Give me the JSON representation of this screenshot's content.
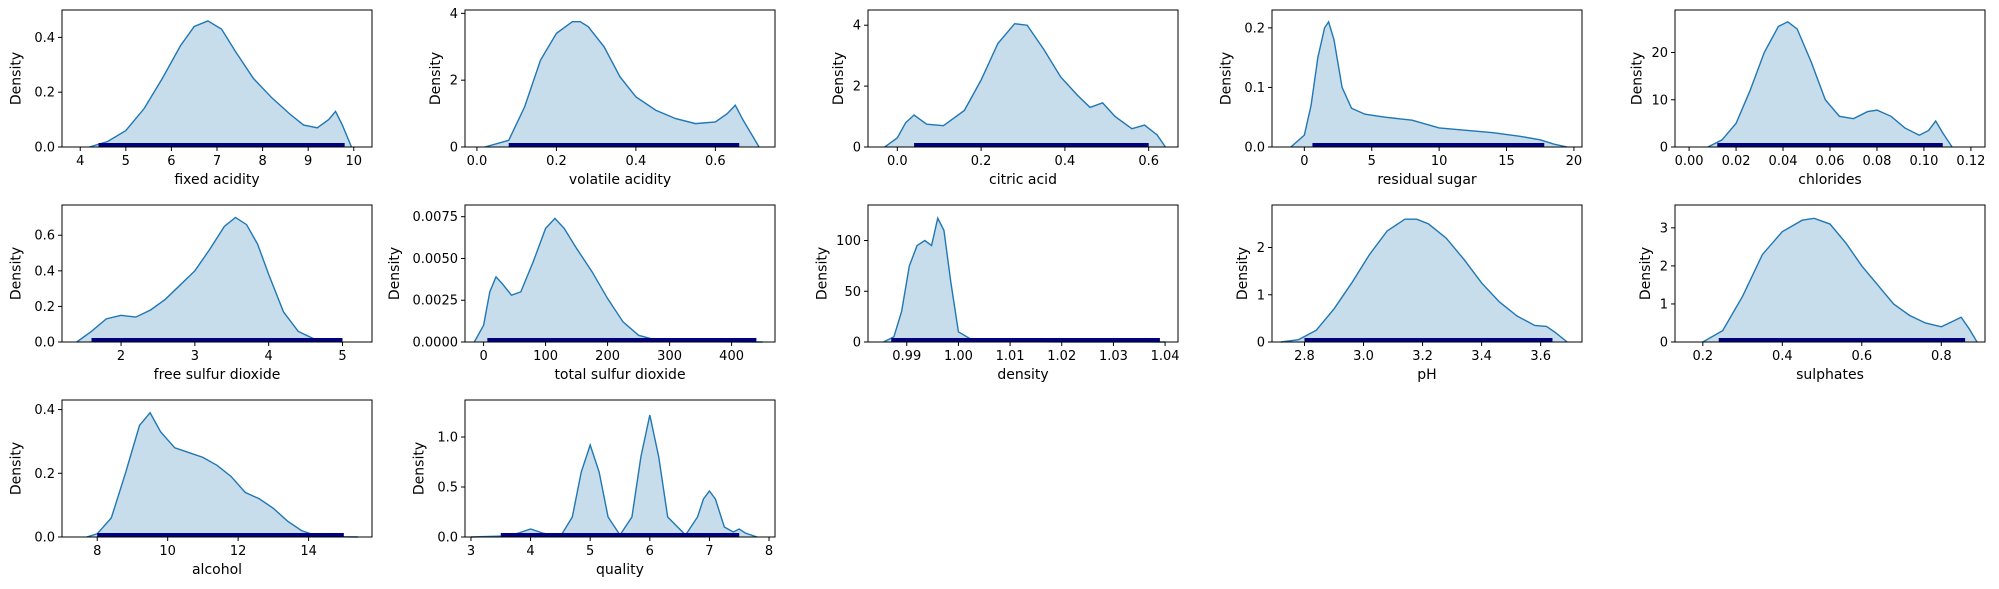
{
  "style": {
    "fill_color": "#1f77b4",
    "line_color": "#1f77b4",
    "rug_color": "#000080",
    "frame_color": "#000000"
  },
  "chart_data": [
    {
      "type": "area",
      "xlabel": "fixed acidity",
      "ylabel": "Density",
      "xlim": [
        3.6,
        10.4
      ],
      "ylim": [
        0,
        0.5
      ],
      "xticks": [
        "4",
        "5",
        "6",
        "7",
        "8",
        "9",
        "10"
      ],
      "yticks": [
        "0.0",
        "0.2",
        "0.4"
      ],
      "x": [
        4.2,
        4.6,
        5.0,
        5.4,
        5.8,
        6.2,
        6.5,
        6.8,
        7.1,
        7.4,
        7.8,
        8.2,
        8.6,
        8.9,
        9.2,
        9.45,
        9.6,
        9.75,
        9.95
      ],
      "y": [
        0.0,
        0.02,
        0.06,
        0.14,
        0.25,
        0.37,
        0.44,
        0.46,
        0.43,
        0.35,
        0.25,
        0.18,
        0.12,
        0.08,
        0.07,
        0.1,
        0.13,
        0.08,
        0.0
      ],
      "rug": [
        4.4,
        9.8
      ]
    },
    {
      "type": "area",
      "xlabel": "volatile acidity",
      "ylabel": "Density",
      "xlim": [
        -0.03,
        0.75
      ],
      "ylim": [
        0,
        4.1
      ],
      "xticks": [
        "0.0",
        "0.2",
        "0.4",
        "0.6"
      ],
      "yticks": [
        "0",
        "2",
        "4"
      ],
      "x": [
        0.02,
        0.08,
        0.12,
        0.16,
        0.2,
        0.24,
        0.26,
        0.28,
        0.32,
        0.36,
        0.4,
        0.45,
        0.5,
        0.55,
        0.6,
        0.63,
        0.65,
        0.67,
        0.71
      ],
      "y": [
        0.0,
        0.2,
        1.2,
        2.6,
        3.4,
        3.75,
        3.75,
        3.6,
        3.0,
        2.1,
        1.5,
        1.1,
        0.85,
        0.7,
        0.75,
        1.0,
        1.25,
        0.8,
        0.0
      ],
      "rug": [
        0.08,
        0.66
      ]
    },
    {
      "type": "area",
      "xlabel": "citric acid",
      "ylabel": "Density",
      "xlim": [
        -0.07,
        0.67
      ],
      "ylim": [
        0,
        4.5
      ],
      "xticks": [
        "0.0",
        "0.2",
        "0.4",
        "0.6"
      ],
      "yticks": [
        "0",
        "2",
        "4"
      ],
      "x": [
        -0.03,
        0.0,
        0.02,
        0.04,
        0.07,
        0.11,
        0.16,
        0.2,
        0.24,
        0.28,
        0.31,
        0.35,
        0.39,
        0.43,
        0.46,
        0.49,
        0.52,
        0.56,
        0.59,
        0.62,
        0.64
      ],
      "y": [
        0.0,
        0.3,
        0.8,
        1.05,
        0.75,
        0.7,
        1.2,
        2.2,
        3.4,
        4.05,
        4.0,
        3.2,
        2.3,
        1.7,
        1.3,
        1.45,
        1.0,
        0.6,
        0.72,
        0.4,
        0.0
      ],
      "rug": [
        0.04,
        0.6
      ]
    },
    {
      "type": "area",
      "xlabel": "residual sugar",
      "ylabel": "Density",
      "xlim": [
        -2.4,
        20.6
      ],
      "ylim": [
        0,
        0.23
      ],
      "xticks": [
        "0",
        "5",
        "10",
        "15",
        "20"
      ],
      "yticks": [
        "0.0",
        "0.1",
        "0.2"
      ],
      "x": [
        -1.0,
        0.0,
        0.5,
        1.0,
        1.5,
        1.8,
        2.2,
        2.8,
        3.5,
        4.5,
        6.0,
        8.0,
        10.0,
        12.0,
        14.0,
        16.0,
        17.5,
        18.5,
        19.5
      ],
      "y": [
        0.0,
        0.02,
        0.07,
        0.15,
        0.2,
        0.21,
        0.18,
        0.1,
        0.065,
        0.055,
        0.05,
        0.045,
        0.032,
        0.028,
        0.024,
        0.018,
        0.012,
        0.005,
        0.0
      ],
      "rug": [
        0.6,
        17.8
      ]
    },
    {
      "type": "area",
      "xlabel": "chlorides",
      "ylabel": "Density",
      "xlim": [
        -0.006,
        0.126
      ],
      "ylim": [
        0,
        29
      ],
      "xticks": [
        "0.00",
        "0.02",
        "0.04",
        "0.06",
        "0.08",
        "0.10",
        "0.12"
      ],
      "yticks": [
        "0",
        "10",
        "20"
      ],
      "x": [
        0.008,
        0.014,
        0.02,
        0.026,
        0.032,
        0.038,
        0.042,
        0.046,
        0.052,
        0.058,
        0.064,
        0.07,
        0.076,
        0.08,
        0.086,
        0.092,
        0.098,
        0.102,
        0.105,
        0.108,
        0.112
      ],
      "y": [
        0.0,
        1.5,
        5.0,
        12.0,
        20.0,
        25.5,
        26.5,
        25.0,
        18.0,
        10.0,
        6.5,
        6.0,
        7.5,
        7.8,
        6.5,
        4.0,
        2.5,
        3.5,
        5.5,
        3.0,
        0.0
      ],
      "rug": [
        0.012,
        0.108
      ]
    },
    {
      "type": "area",
      "xlabel": "free sulfur dioxide",
      "ylabel": "Density",
      "xlim": [
        1.2,
        5.4
      ],
      "ylim": [
        0,
        0.77
      ],
      "xticks": [
        "2",
        "3",
        "4",
        "5"
      ],
      "yticks": [
        "0.0",
        "0.2",
        "0.4",
        "0.6"
      ],
      "x": [
        1.4,
        1.6,
        1.8,
        2.0,
        2.2,
        2.4,
        2.6,
        2.8,
        3.0,
        3.2,
        3.4,
        3.55,
        3.7,
        3.85,
        4.0,
        4.2,
        4.4,
        4.6,
        4.8,
        5.0
      ],
      "y": [
        0.0,
        0.06,
        0.13,
        0.15,
        0.14,
        0.18,
        0.24,
        0.32,
        0.4,
        0.52,
        0.65,
        0.7,
        0.66,
        0.55,
        0.38,
        0.17,
        0.06,
        0.02,
        0.005,
        0.0
      ],
      "rug": [
        1.6,
        5.0
      ]
    },
    {
      "type": "area",
      "xlabel": "total sulfur dioxide",
      "ylabel": "Density",
      "xlim": [
        -30,
        470
      ],
      "ylim": [
        0,
        0.0082
      ],
      "xticks": [
        "0",
        "100",
        "200",
        "300",
        "400"
      ],
      "yticks": [
        "0.0000",
        "0.0025",
        "0.0050",
        "0.0075"
      ],
      "x": [
        -15,
        0,
        10,
        20,
        30,
        45,
        60,
        80,
        100,
        115,
        130,
        150,
        175,
        200,
        225,
        250,
        280,
        320,
        380,
        450
      ],
      "y": [
        0.0,
        0.001,
        0.003,
        0.0039,
        0.0035,
        0.0028,
        0.003,
        0.0048,
        0.0068,
        0.0074,
        0.0068,
        0.0056,
        0.0042,
        0.0026,
        0.0012,
        0.0004,
        0.0001,
        3e-05,
        1e-05,
        0.0
      ],
      "rug": [
        6,
        440
      ]
    },
    {
      "type": "area",
      "xlabel": "density",
      "ylabel": "Density",
      "xlim": [
        0.9825,
        1.0425
      ],
      "ylim": [
        0,
        135
      ],
      "xticks": [
        "0.99",
        "1.00",
        "1.01",
        "1.02",
        "1.03",
        "1.04"
      ],
      "yticks": [
        "0",
        "50",
        "100"
      ],
      "x": [
        0.9855,
        0.9875,
        0.989,
        0.9905,
        0.992,
        0.9935,
        0.9948,
        0.996,
        0.9972,
        0.9985,
        1.0,
        1.003,
        1.01,
        1.02,
        1.03,
        1.04
      ],
      "y": [
        0.0,
        5,
        30,
        75,
        95,
        100,
        95,
        122,
        110,
        60,
        10,
        1,
        0.3,
        0.1,
        0.05,
        0.0
      ],
      "rug": [
        0.987,
        1.039
      ]
    },
    {
      "type": "area",
      "xlabel": "pH",
      "ylabel": "Density",
      "xlim": [
        2.69,
        3.74
      ],
      "ylim": [
        0,
        2.9
      ],
      "xticks": [
        "2.8",
        "3.0",
        "3.2",
        "3.4",
        "3.6"
      ],
      "yticks": [
        "0",
        "1",
        "2"
      ],
      "x": [
        2.72,
        2.78,
        2.84,
        2.9,
        2.96,
        3.02,
        3.08,
        3.14,
        3.18,
        3.22,
        3.28,
        3.34,
        3.4,
        3.46,
        3.52,
        3.58,
        3.62,
        3.65,
        3.69
      ],
      "y": [
        0.0,
        0.05,
        0.25,
        0.7,
        1.25,
        1.85,
        2.35,
        2.6,
        2.6,
        2.5,
        2.2,
        1.75,
        1.25,
        0.85,
        0.55,
        0.35,
        0.33,
        0.2,
        0.0
      ],
      "rug": [
        2.8,
        3.64
      ]
    },
    {
      "type": "area",
      "xlabel": "sulphates",
      "ylabel": "Density",
      "xlim": [
        0.13,
        0.91
      ],
      "ylim": [
        0,
        3.6
      ],
      "xticks": [
        "0.2",
        "0.4",
        "0.6",
        "0.8"
      ],
      "yticks": [
        "0",
        "1",
        "2",
        "3"
      ],
      "x": [
        0.2,
        0.25,
        0.3,
        0.35,
        0.4,
        0.45,
        0.48,
        0.52,
        0.56,
        0.6,
        0.64,
        0.68,
        0.72,
        0.76,
        0.8,
        0.83,
        0.85,
        0.87,
        0.89
      ],
      "y": [
        0.0,
        0.3,
        1.2,
        2.3,
        2.9,
        3.2,
        3.25,
        3.1,
        2.6,
        2.0,
        1.5,
        1.0,
        0.7,
        0.5,
        0.4,
        0.55,
        0.65,
        0.35,
        0.0
      ],
      "rug": [
        0.24,
        0.86
      ]
    },
    {
      "type": "area",
      "xlabel": "alcohol",
      "ylabel": "Density",
      "xlim": [
        7.0,
        15.8
      ],
      "ylim": [
        0,
        0.43
      ],
      "xticks": [
        "8",
        "10",
        "12",
        "14"
      ],
      "yticks": [
        "0.0",
        "0.2",
        "0.4"
      ],
      "x": [
        7.7,
        8.0,
        8.4,
        8.8,
        9.2,
        9.5,
        9.8,
        10.2,
        10.6,
        11.0,
        11.4,
        11.8,
        12.2,
        12.6,
        13.0,
        13.4,
        13.8,
        14.2,
        14.8,
        15.4
      ],
      "y": [
        0.0,
        0.01,
        0.06,
        0.2,
        0.35,
        0.39,
        0.33,
        0.28,
        0.265,
        0.25,
        0.225,
        0.19,
        0.14,
        0.12,
        0.09,
        0.05,
        0.02,
        0.005,
        0.001,
        0.0
      ],
      "rug": [
        8.0,
        15.0
      ]
    },
    {
      "type": "area",
      "xlabel": "quality",
      "ylabel": "Density",
      "xlim": [
        2.9,
        8.1
      ],
      "ylim": [
        0,
        1.37
      ],
      "xticks": [
        "3",
        "4",
        "5",
        "6",
        "7",
        "8"
      ],
      "yticks": [
        "0.0",
        "0.5",
        "1.0"
      ],
      "x": [
        3.0,
        3.6,
        3.8,
        4.0,
        4.2,
        4.5,
        4.7,
        4.85,
        5.0,
        5.15,
        5.3,
        5.5,
        5.7,
        5.85,
        6.0,
        6.15,
        6.3,
        6.6,
        6.8,
        6.9,
        7.0,
        7.1,
        7.25,
        7.4,
        7.5,
        7.6,
        7.8
      ],
      "y": [
        0.0,
        0.01,
        0.04,
        0.08,
        0.04,
        0.005,
        0.2,
        0.65,
        0.92,
        0.65,
        0.2,
        0.02,
        0.2,
        0.8,
        1.22,
        0.8,
        0.2,
        0.02,
        0.2,
        0.38,
        0.46,
        0.38,
        0.1,
        0.05,
        0.08,
        0.04,
        0.0
      ],
      "rug": [
        3.5,
        7.5
      ]
    }
  ]
}
